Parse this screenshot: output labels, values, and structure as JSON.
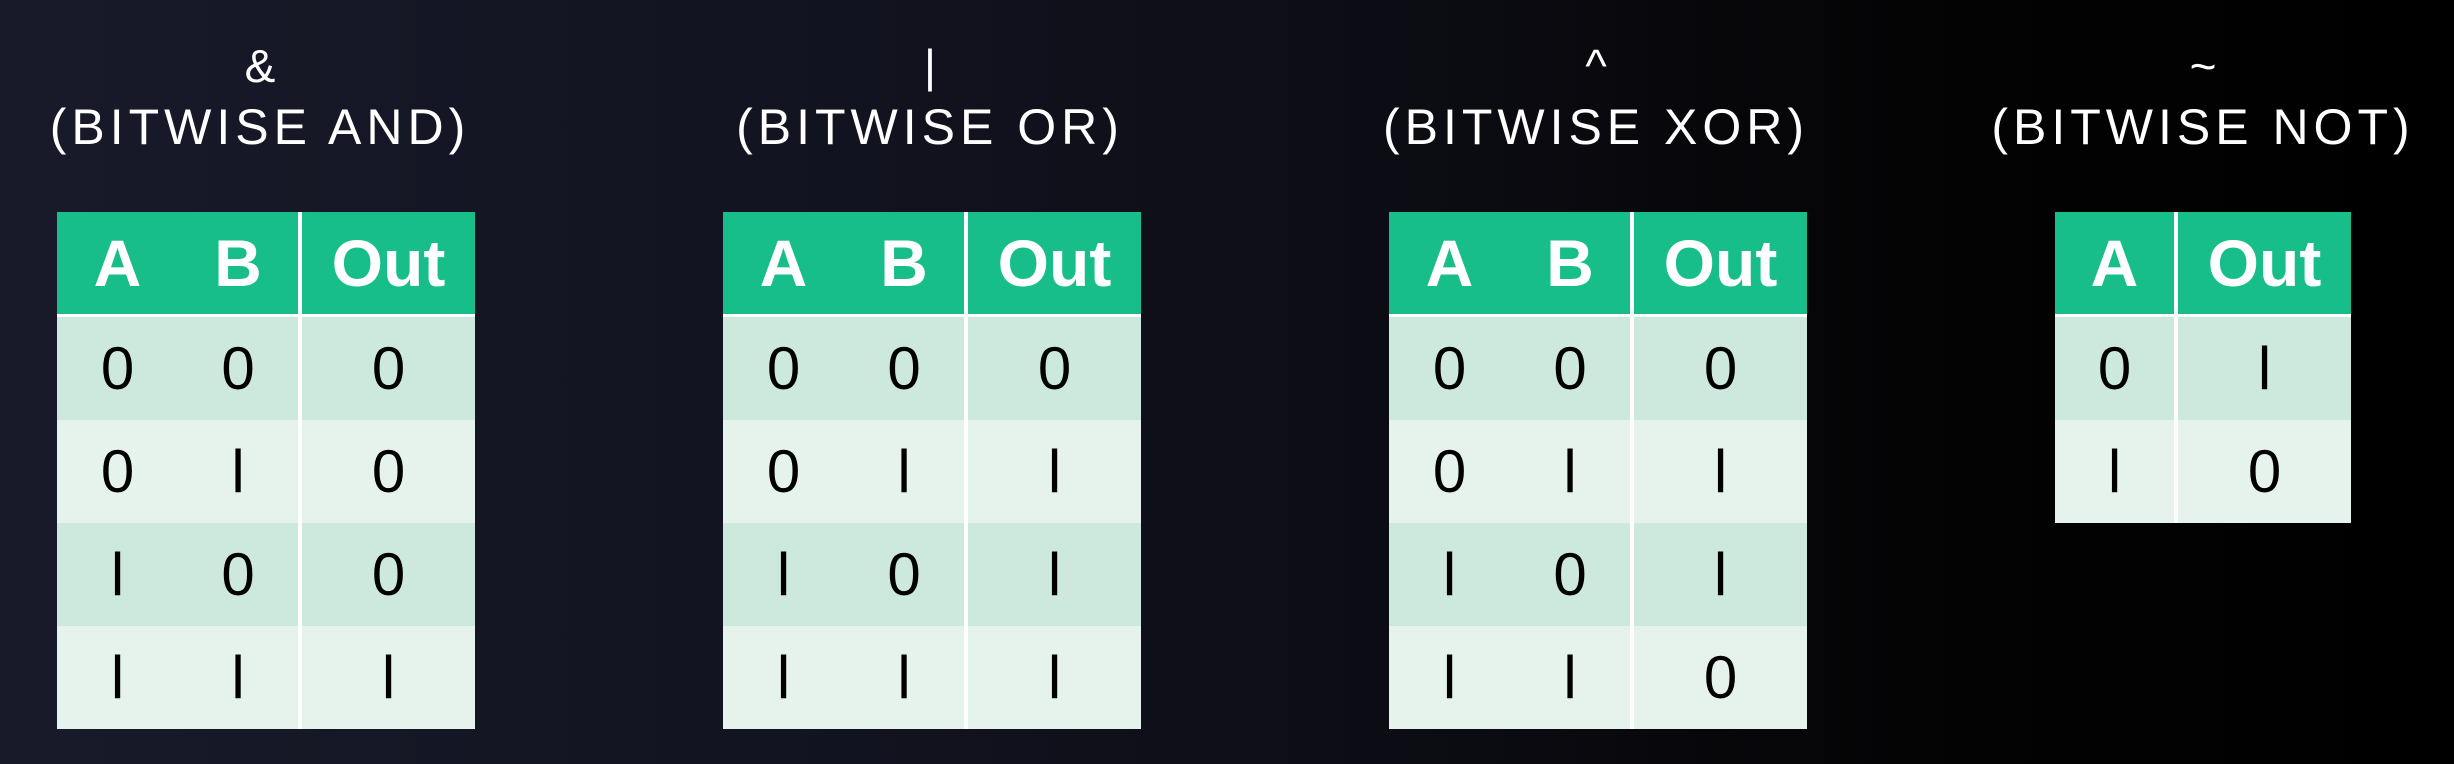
{
  "colors": {
    "header_bg": "#17be8a",
    "row_dark": "#cde8dc",
    "row_light": "#e5f3ec",
    "title_text": "#ffffff"
  },
  "tables": [
    {
      "symbol": "&",
      "name": "(BITWISE AND)",
      "headers": [
        "A",
        "B",
        "Out"
      ],
      "rows": [
        [
          "0",
          "0",
          "0"
        ],
        [
          "0",
          "l",
          "0"
        ],
        [
          "l",
          "0",
          "0"
        ],
        [
          "l",
          "l",
          "l"
        ]
      ]
    },
    {
      "symbol": "|",
      "name": "(BITWISE OR)",
      "headers": [
        "A",
        "B",
        "Out"
      ],
      "rows": [
        [
          "0",
          "0",
          "0"
        ],
        [
          "0",
          "l",
          "l"
        ],
        [
          "l",
          "0",
          "l"
        ],
        [
          "l",
          "l",
          "l"
        ]
      ]
    },
    {
      "symbol": "^",
      "name": "(BITWISE XOR)",
      "headers": [
        "A",
        "B",
        "Out"
      ],
      "rows": [
        [
          "0",
          "0",
          "0"
        ],
        [
          "0",
          "l",
          "l"
        ],
        [
          "l",
          "0",
          "l"
        ],
        [
          "l",
          "l",
          "0"
        ]
      ]
    },
    {
      "symbol": "~",
      "name": "(BITWISE NOT)",
      "headers": [
        "A",
        "Out"
      ],
      "rows": [
        [
          "0",
          "l"
        ],
        [
          "l",
          "0"
        ]
      ]
    }
  ]
}
